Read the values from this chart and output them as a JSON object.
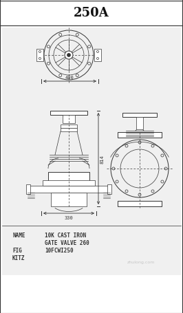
{
  "title": "250A",
  "bg_color": "#ffffff",
  "drawing_bg": "#ffffff",
  "line_color": "#333333",
  "title_bg": "#ffffff",
  "text_info_left": [
    "NAME",
    "",
    "FIG",
    "KITZ"
  ],
  "text_info_right": [
    "10K CAST IRON",
    "GATE VALVE 260",
    "10FCWI250",
    ""
  ],
  "dim_400": "400",
  "dim_814": "814",
  "dim_330": "330",
  "watermark": "zhulong.com",
  "title_fontsize": 13,
  "info_fontsize": 5.5
}
